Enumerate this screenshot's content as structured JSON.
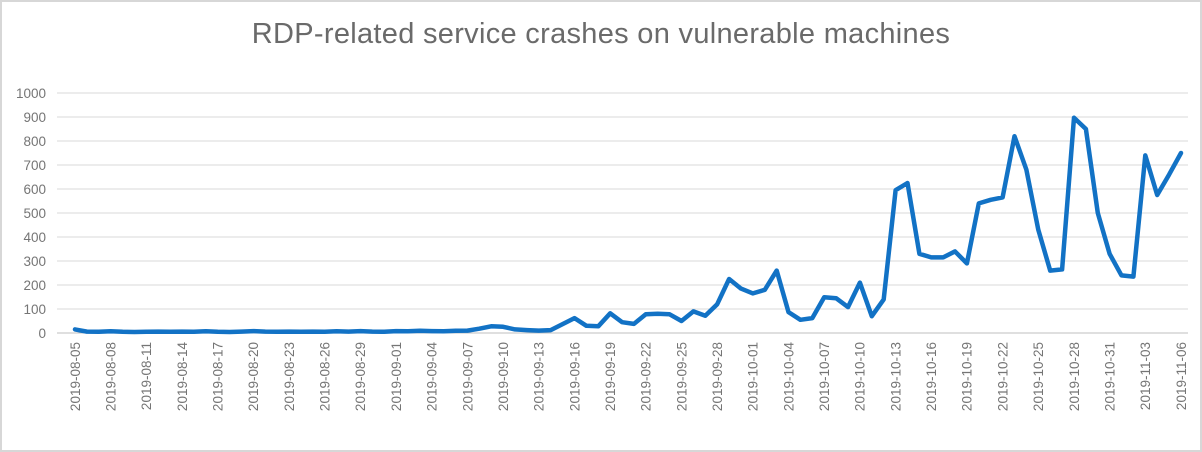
{
  "window": {
    "background": "#FFFFFF",
    "border_color": "#D7D7D7"
  },
  "chart_data": {
    "type": "line",
    "title": "RDP-related service crashes on vulnerable machines",
    "xlabel": "",
    "ylabel": "",
    "ylim": [
      0,
      1000
    ],
    "y_ticks": [
      0,
      100,
      200,
      300,
      400,
      500,
      600,
      700,
      800,
      900,
      1000
    ],
    "grid": true,
    "legend": false,
    "x_tick_every": 3,
    "x_tick_labels": [
      "2019-08-05",
      "2019-08-08",
      "2019-08-11",
      "2019-08-14",
      "2019-08-17",
      "2019-08-20",
      "2019-08-23",
      "2019-08-26",
      "2019-08-29",
      "2019-09-01",
      "2019-09-04",
      "2019-09-07",
      "2019-09-10",
      "2019-09-13",
      "2019-09-16",
      "2019-09-19",
      "2019-09-22",
      "2019-09-25",
      "2019-09-28",
      "2019-10-01",
      "2019-10-04",
      "2019-10-07",
      "2019-10-10",
      "2019-10-13",
      "2019-10-16",
      "2019-10-19",
      "2019-10-22",
      "2019-10-25",
      "2019-10-28",
      "2019-10-31",
      "2019-11-03",
      "2019-11-06"
    ],
    "x": [
      "2019-08-05",
      "2019-08-06",
      "2019-08-07",
      "2019-08-08",
      "2019-08-09",
      "2019-08-10",
      "2019-08-11",
      "2019-08-12",
      "2019-08-13",
      "2019-08-14",
      "2019-08-15",
      "2019-08-16",
      "2019-08-17",
      "2019-08-18",
      "2019-08-19",
      "2019-08-20",
      "2019-08-21",
      "2019-08-22",
      "2019-08-23",
      "2019-08-24",
      "2019-08-25",
      "2019-08-26",
      "2019-08-27",
      "2019-08-28",
      "2019-08-29",
      "2019-08-30",
      "2019-08-31",
      "2019-09-01",
      "2019-09-02",
      "2019-09-03",
      "2019-09-04",
      "2019-09-05",
      "2019-09-06",
      "2019-09-07",
      "2019-09-08",
      "2019-09-09",
      "2019-09-10",
      "2019-09-11",
      "2019-09-12",
      "2019-09-13",
      "2019-09-14",
      "2019-09-15",
      "2019-09-16",
      "2019-09-17",
      "2019-09-18",
      "2019-09-19",
      "2019-09-20",
      "2019-09-21",
      "2019-09-22",
      "2019-09-23",
      "2019-09-24",
      "2019-09-25",
      "2019-09-26",
      "2019-09-27",
      "2019-09-28",
      "2019-09-29",
      "2019-09-30",
      "2019-10-01",
      "2019-10-02",
      "2019-10-03",
      "2019-10-04",
      "2019-10-05",
      "2019-10-06",
      "2019-10-07",
      "2019-10-08",
      "2019-10-09",
      "2019-10-10",
      "2019-10-11",
      "2019-10-12",
      "2019-10-13",
      "2019-10-14",
      "2019-10-15",
      "2019-10-16",
      "2019-10-17",
      "2019-10-18",
      "2019-10-19",
      "2019-10-20",
      "2019-10-21",
      "2019-10-22",
      "2019-10-23",
      "2019-10-24",
      "2019-10-25",
      "2019-10-26",
      "2019-10-27",
      "2019-10-28",
      "2019-10-29",
      "2019-10-30",
      "2019-10-31",
      "2019-11-01",
      "2019-11-02",
      "2019-11-03",
      "2019-11-04",
      "2019-11-05",
      "2019-11-06"
    ],
    "values": [
      15,
      6,
      5,
      7,
      5,
      4,
      5,
      6,
      5,
      6,
      5,
      7,
      5,
      4,
      6,
      8,
      6,
      5,
      6,
      5,
      6,
      5,
      7,
      6,
      8,
      6,
      5,
      8,
      7,
      9,
      8,
      7,
      9,
      10,
      18,
      28,
      26,
      15,
      12,
      10,
      12,
      37,
      62,
      30,
      28,
      82,
      45,
      38,
      78,
      80,
      78,
      50,
      90,
      72,
      120,
      225,
      185,
      165,
      180,
      260,
      87,
      55,
      62,
      149,
      145,
      108,
      210,
      70,
      140,
      595,
      625,
      330,
      315,
      315,
      340,
      290,
      540,
      555,
      565,
      820,
      680,
      430,
      260,
      265,
      897,
      850,
      500,
      330,
      240,
      235,
      740,
      575,
      660,
      750
    ],
    "line_color": "#1272C5",
    "line_width": 4.5,
    "gridline_color": "#D9D9D9",
    "axis_line_color": "#BFBFBF",
    "title_color": "#6A6A6A",
    "tick_label_color": "#757575"
  }
}
